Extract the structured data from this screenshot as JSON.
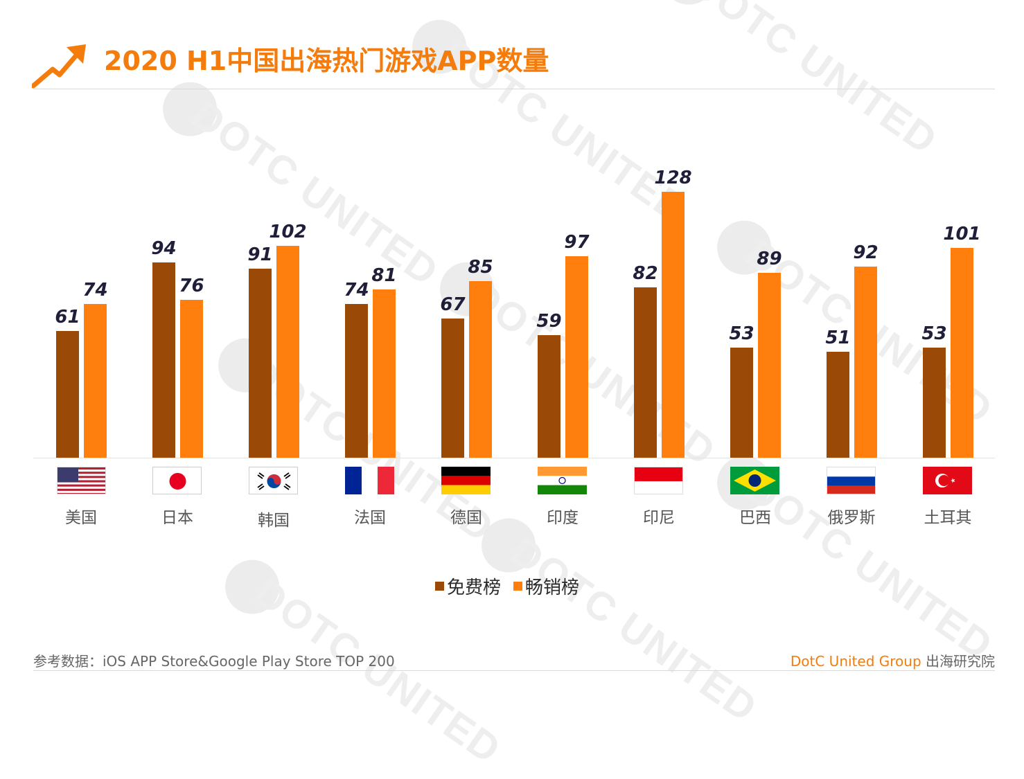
{
  "title": "2020 H1中国出海热门游戏APP数量",
  "colors": {
    "free": "#9a4a06",
    "paid": "#ff7f0e",
    "accent": "#f47c0d"
  },
  "chart_data": {
    "type": "bar",
    "categories": [
      "美国",
      "日本",
      "韩国",
      "法国",
      "德国",
      "印度",
      "印尼",
      "巴西",
      "俄罗斯",
      "土耳其"
    ],
    "series": [
      {
        "name": "免费榜",
        "values": [
          61,
          94,
          91,
          74,
          67,
          59,
          82,
          53,
          51,
          53
        ]
      },
      {
        "name": "畅销榜",
        "values": [
          74,
          76,
          102,
          81,
          85,
          97,
          128,
          89,
          92,
          101
        ]
      }
    ],
    "flags": [
      "us-flag",
      "japan-flag",
      "korea-flag",
      "france-flag",
      "germany-flag",
      "india-flag",
      "indonesia-flag",
      "brazil-flag",
      "russia-flag",
      "turkey-flag"
    ],
    "ylim": [
      0,
      128
    ],
    "grid": false,
    "legend_position": "bottom-center"
  },
  "legend": {
    "free": "免费榜",
    "paid": "畅销榜"
  },
  "footer": {
    "source": "参考数据：iOS APP Store&Google Play Store TOP 200",
    "brand_en": "DotC United Group",
    "brand_cn": "出海研究院"
  },
  "watermark": "DOTC UNITED"
}
